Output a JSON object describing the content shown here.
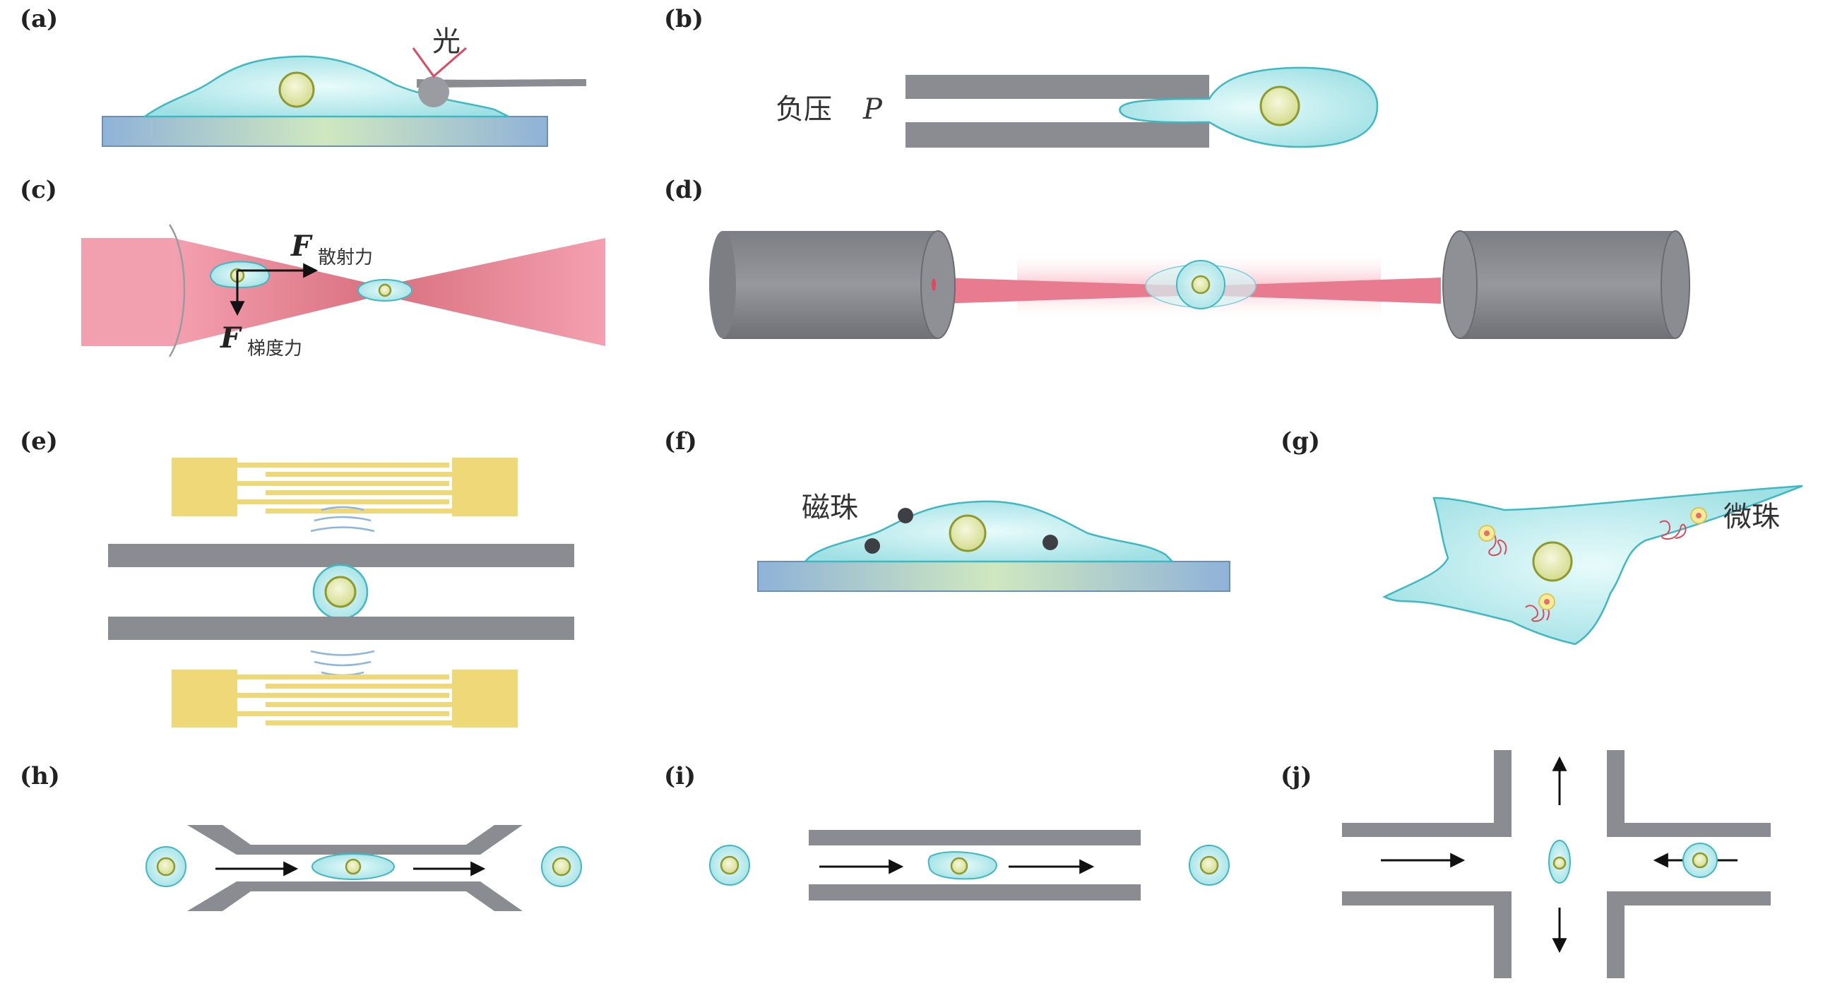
{
  "panels": [
    {
      "id": "a",
      "label": "(a)",
      "annotation": "光"
    },
    {
      "id": "b",
      "label": "(b)",
      "annotation_prefix": "负压",
      "annotation_symbol": "P"
    },
    {
      "id": "c",
      "label": "(c)",
      "force_symbol": "F",
      "scatter_label": "散射力",
      "gradient_label": "梯度力"
    },
    {
      "id": "d",
      "label": "(d)"
    },
    {
      "id": "e",
      "label": "(e)"
    },
    {
      "id": "f",
      "label": "(f)",
      "annotation": "磁珠"
    },
    {
      "id": "g",
      "label": "(g)",
      "annotation": "微珠"
    },
    {
      "id": "h",
      "label": "(h)"
    },
    {
      "id": "i",
      "label": "(i)"
    },
    {
      "id": "j",
      "label": "(j)"
    }
  ],
  "colors": {
    "cell_fill": "#bfeeee",
    "cell_stroke": "#3fb8c2",
    "nucleus_fill": "#e4ecb2",
    "nucleus_stroke": "#8f9a2e",
    "wall_gray": "#8a8c92",
    "laser_pink": "#e87b90",
    "electrode_gold": "#eed878",
    "arrow": "#111111"
  }
}
